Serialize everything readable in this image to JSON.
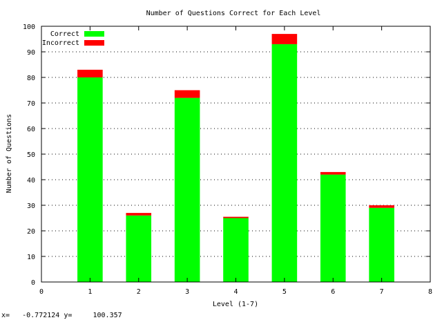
{
  "chart_data": {
    "type": "bar",
    "stacked": true,
    "title": "Number of Questions Correct for Each Level",
    "xlabel": "Level (1-7)",
    "ylabel": "Number of Questions",
    "xlim": [
      0,
      8
    ],
    "ylim": [
      0,
      100
    ],
    "x_ticks": [
      "0",
      "1",
      "2",
      "3",
      "4",
      "5",
      "6",
      "7",
      "8"
    ],
    "y_ticks": [
      "0",
      "10",
      "20",
      "30",
      "40",
      "50",
      "60",
      "70",
      "80",
      "90",
      "100"
    ],
    "grid": "y-dotted",
    "legend_position": "top-left",
    "categories": [
      1,
      2,
      3,
      4,
      5,
      6,
      7
    ],
    "series": [
      {
        "name": "Correct",
        "color": "#00ff00",
        "values": [
          80,
          26,
          72,
          25,
          93,
          42,
          29
        ]
      },
      {
        "name": "Incorrect",
        "color": "#ff0000",
        "values": [
          3,
          1,
          3,
          0.5,
          4,
          1,
          1
        ]
      }
    ]
  },
  "status": {
    "x_label": "x=",
    "x_value": "-0.772124",
    "y_label": "y=",
    "y_value": "100.357"
  }
}
